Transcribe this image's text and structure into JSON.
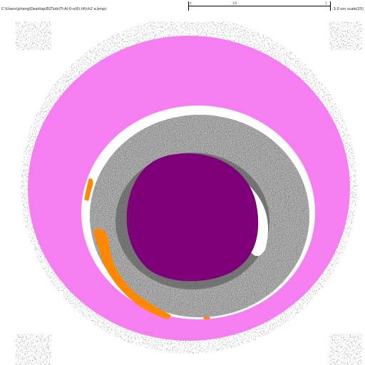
{
  "header": {
    "file_path": "C:\\Users\\jsheng\\Desktop\\ELT\\idx\\Ti-Al-0-o(6).tif(ch2 a.bmp)",
    "info_text": "3.0 um  scale(25)",
    "scale_labels": [
      "0",
      "1/2",
      "1"
    ]
  },
  "colors": {
    "background": "#ffffff",
    "outer_ring": "#f57ff0",
    "core": "#7d0079",
    "gray_band": "#8a8a8a",
    "highlight": "#ff8800"
  },
  "icons": {
    "micrograph": "segmented-cross-section"
  }
}
